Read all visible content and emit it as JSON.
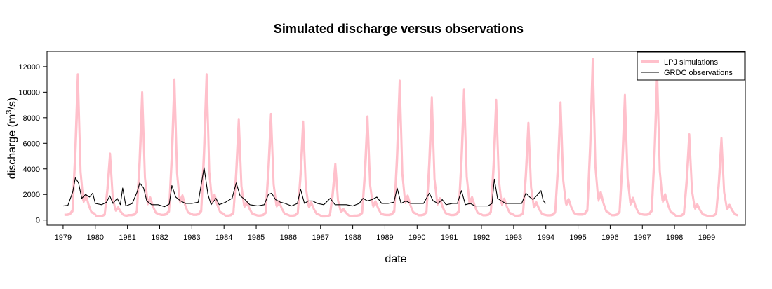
{
  "chart_data": {
    "type": "line",
    "title": "Simulated discharge versus observations",
    "xlabel": "date",
    "ylabel": "discharge (m³/s)",
    "ylabel_parts": {
      "main": "discharge (m",
      "sup": "3",
      "tail": "/s)"
    },
    "xlim": [
      1978.5,
      2000.2
    ],
    "ylim": [
      -400,
      13200
    ],
    "x_ticks": [
      1979,
      1980,
      1981,
      1982,
      1983,
      1984,
      1985,
      1986,
      1987,
      1988,
      1989,
      1990,
      1991,
      1992,
      1993,
      1994,
      1995,
      1996,
      1997,
      1998,
      1999
    ],
    "y_ticks": [
      0,
      2000,
      4000,
      6000,
      8000,
      10000,
      12000
    ],
    "grid": false,
    "legend_position": "top-right",
    "series": [
      {
        "name": "LPJ simulations",
        "color": "#ffc0cb",
        "annual_peaks": [
          {
            "year": 1979,
            "peak": 11400,
            "baseline": 200
          },
          {
            "year": 1980,
            "peak": 5200,
            "baseline": 200
          },
          {
            "year": 1981,
            "peak": 10000,
            "baseline": 200
          },
          {
            "year": 1982,
            "peak": 11000,
            "baseline": 200
          },
          {
            "year": 1983,
            "peak": 11400,
            "baseline": 200
          },
          {
            "year": 1984,
            "peak": 7900,
            "baseline": 200
          },
          {
            "year": 1985,
            "peak": 8300,
            "baseline": 200
          },
          {
            "year": 1986,
            "peak": 7700,
            "baseline": 200
          },
          {
            "year": 1987,
            "peak": 4400,
            "baseline": 200
          },
          {
            "year": 1988,
            "peak": 8100,
            "baseline": 200
          },
          {
            "year": 1989,
            "peak": 10900,
            "baseline": 200
          },
          {
            "year": 1990,
            "peak": 9600,
            "baseline": 200
          },
          {
            "year": 1991,
            "peak": 10200,
            "baseline": 200
          },
          {
            "year": 1992,
            "peak": 9400,
            "baseline": 200
          },
          {
            "year": 1993,
            "peak": 7600,
            "baseline": 200
          },
          {
            "year": 1994,
            "peak": 9200,
            "baseline": 200
          },
          {
            "year": 1995,
            "peak": 12600,
            "baseline": 200
          },
          {
            "year": 1996,
            "peak": 9800,
            "baseline": 200
          },
          {
            "year": 1997,
            "peak": 11600,
            "baseline": 200
          },
          {
            "year": 1998,
            "peak": 6700,
            "baseline": 200
          },
          {
            "year": 1999,
            "peak": 6400,
            "baseline": 200
          }
        ]
      },
      {
        "name": "GRDC observations",
        "color": "#000000",
        "points": [
          [
            1979.0,
            1100
          ],
          [
            1979.15,
            1150
          ],
          [
            1979.3,
            2200
          ],
          [
            1979.38,
            3300
          ],
          [
            1979.48,
            2900
          ],
          [
            1979.58,
            1700
          ],
          [
            1979.7,
            2000
          ],
          [
            1979.82,
            1800
          ],
          [
            1979.92,
            2100
          ],
          [
            1980.0,
            1300
          ],
          [
            1980.2,
            1200
          ],
          [
            1980.35,
            1400
          ],
          [
            1980.45,
            1900
          ],
          [
            1980.55,
            1300
          ],
          [
            1980.68,
            1700
          ],
          [
            1980.78,
            1200
          ],
          [
            1980.85,
            2500
          ],
          [
            1980.95,
            1100
          ],
          [
            1981.15,
            1300
          ],
          [
            1981.3,
            2200
          ],
          [
            1981.38,
            2900
          ],
          [
            1981.5,
            2500
          ],
          [
            1981.6,
            1500
          ],
          [
            1981.75,
            1200
          ],
          [
            1981.95,
            1200
          ],
          [
            1982.15,
            1050
          ],
          [
            1982.3,
            1250
          ],
          [
            1982.38,
            2700
          ],
          [
            1982.5,
            1800
          ],
          [
            1982.65,
            1500
          ],
          [
            1982.8,
            1300
          ],
          [
            1983.0,
            1300
          ],
          [
            1983.2,
            1400
          ],
          [
            1983.38,
            4100
          ],
          [
            1983.5,
            2000
          ],
          [
            1983.6,
            1200
          ],
          [
            1983.75,
            1700
          ],
          [
            1983.85,
            1200
          ],
          [
            1984.05,
            1400
          ],
          [
            1984.25,
            1700
          ],
          [
            1984.38,
            2900
          ],
          [
            1984.5,
            1900
          ],
          [
            1984.65,
            1600
          ],
          [
            1984.8,
            1200
          ],
          [
            1985.05,
            1100
          ],
          [
            1985.25,
            1200
          ],
          [
            1985.38,
            2000
          ],
          [
            1985.48,
            2100
          ],
          [
            1985.6,
            1600
          ],
          [
            1985.75,
            1400
          ],
          [
            1985.9,
            1300
          ],
          [
            1986.1,
            1100
          ],
          [
            1986.28,
            1300
          ],
          [
            1986.38,
            2400
          ],
          [
            1986.5,
            1300
          ],
          [
            1986.62,
            1500
          ],
          [
            1986.75,
            1500
          ],
          [
            1986.9,
            1300
          ],
          [
            1987.1,
            1200
          ],
          [
            1987.3,
            1700
          ],
          [
            1987.45,
            1200
          ],
          [
            1987.6,
            1200
          ],
          [
            1987.8,
            1200
          ],
          [
            1988.0,
            1100
          ],
          [
            1988.2,
            1300
          ],
          [
            1988.32,
            1700
          ],
          [
            1988.45,
            1500
          ],
          [
            1988.6,
            1600
          ],
          [
            1988.75,
            1800
          ],
          [
            1988.9,
            1300
          ],
          [
            1989.1,
            1300
          ],
          [
            1989.28,
            1400
          ],
          [
            1989.38,
            2500
          ],
          [
            1989.5,
            1300
          ],
          [
            1989.65,
            1500
          ],
          [
            1989.8,
            1300
          ],
          [
            1990.0,
            1300
          ],
          [
            1990.2,
            1300
          ],
          [
            1990.38,
            2100
          ],
          [
            1990.5,
            1500
          ],
          [
            1990.65,
            1300
          ],
          [
            1990.78,
            1600
          ],
          [
            1990.9,
            1200
          ],
          [
            1991.1,
            1300
          ],
          [
            1991.25,
            1300
          ],
          [
            1991.38,
            2300
          ],
          [
            1991.5,
            1200
          ],
          [
            1991.65,
            1300
          ],
          [
            1991.8,
            1100
          ],
          [
            1992.0,
            1100
          ],
          [
            1992.2,
            1100
          ],
          [
            1992.33,
            1300
          ],
          [
            1992.4,
            3200
          ],
          [
            1992.5,
            1700
          ],
          [
            1992.62,
            1500
          ],
          [
            1992.75,
            1300
          ],
          [
            1992.9,
            1300
          ],
          [
            1993.1,
            1300
          ],
          [
            1993.25,
            1300
          ],
          [
            1993.38,
            2100
          ],
          [
            1993.5,
            1800
          ],
          [
            1993.6,
            1600
          ],
          [
            1993.75,
            2000
          ],
          [
            1993.85,
            2300
          ],
          [
            1993.92,
            1500
          ],
          [
            1994.0,
            1300
          ]
        ]
      }
    ]
  }
}
